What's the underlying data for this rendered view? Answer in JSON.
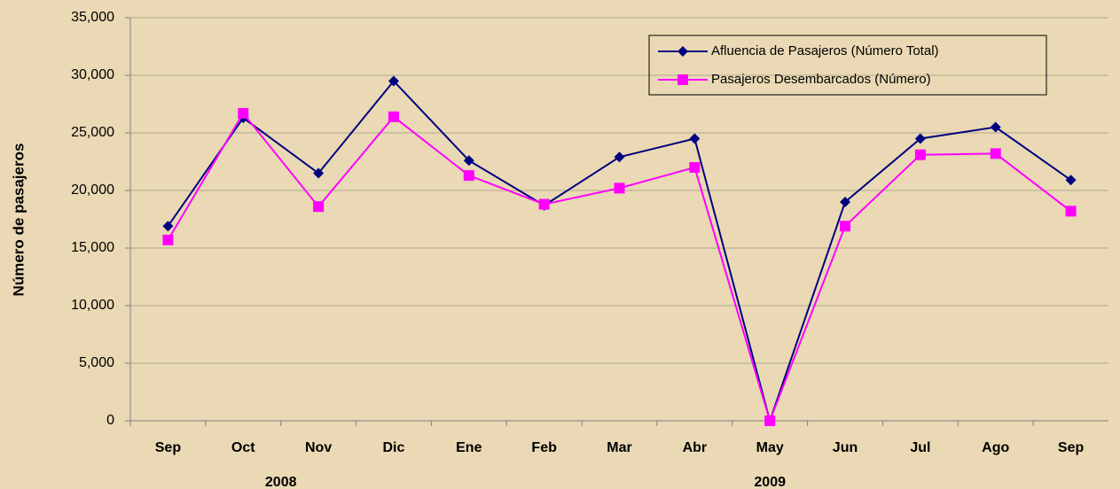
{
  "chart_data": {
    "type": "line",
    "y_label": "Número de pasajeros",
    "categories": [
      "Sep",
      "Oct",
      "Nov",
      "Dic",
      "Ene",
      "Feb",
      "Mar",
      "Abr",
      "May",
      "Jun",
      "Jul",
      "Ago",
      "Sep"
    ],
    "x_groups": [
      "2008",
      "2009"
    ],
    "series": [
      {
        "name": "Afluencia de Pasajeros (Número Total)",
        "color": "#000080",
        "marker": "diamond",
        "values": [
          16900,
          26300,
          21500,
          29500,
          22600,
          18700,
          22900,
          24500,
          0,
          19000,
          24500,
          25500,
          20900
        ]
      },
      {
        "name": "Pasajeros Desembarcados (Número)",
        "color": "#ff00ff",
        "marker": "square",
        "values": [
          15700,
          26700,
          18600,
          26400,
          21300,
          18800,
          20200,
          22000,
          0,
          16900,
          23100,
          23200,
          18200
        ]
      }
    ],
    "ylim": [
      0,
      35000
    ],
    "yticks": [
      0,
      {
        "value": 5000,
        "label": "5,000"
      },
      {
        "value": 10000,
        "label": "10,000"
      },
      {
        "value": 15000,
        "label": "15,000"
      },
      {
        "value": 20000,
        "label": "20,000"
      },
      {
        "value": 25000,
        "label": "25,000"
      },
      {
        "value": 30000,
        "label": "30,000"
      },
      {
        "value": 35000,
        "label": "35,000"
      }
    ],
    "grid": true,
    "legend": "upper right"
  }
}
